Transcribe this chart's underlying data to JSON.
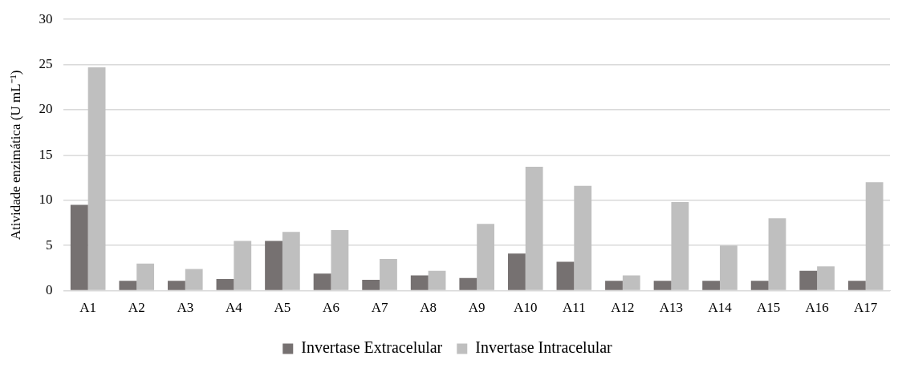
{
  "chart_data": {
    "type": "bar",
    "ylabel": "Atividade enzimática (U mL⁻¹)",
    "categories": [
      "A1",
      "A2",
      "A3",
      "A4",
      "A5",
      "A6",
      "A7",
      "A8",
      "A9",
      "A10",
      "A11",
      "A12",
      "A13",
      "A14",
      "A15",
      "A16",
      "A17"
    ],
    "series": [
      {
        "name": "Invertase Extracelular",
        "color": "#767171",
        "values": [
          9.5,
          1.1,
          1.1,
          1.3,
          5.5,
          1.9,
          1.2,
          1.7,
          1.4,
          4.1,
          3.2,
          1.1,
          1.1,
          1.1,
          1.1,
          2.2,
          1.1
        ]
      },
      {
        "name": "Invertase Intracelular",
        "color": "#bfbfbf",
        "values": [
          24.7,
          3.0,
          2.4,
          5.5,
          6.5,
          6.7,
          3.5,
          2.2,
          7.4,
          13.7,
          11.6,
          1.7,
          9.8,
          5.0,
          8.0,
          2.7,
          12.0
        ]
      }
    ],
    "ylim": [
      0,
      30
    ],
    "yticks": [
      0,
      5,
      10,
      15,
      20,
      25,
      30
    ],
    "grid": "y",
    "legend": "bottom"
  }
}
